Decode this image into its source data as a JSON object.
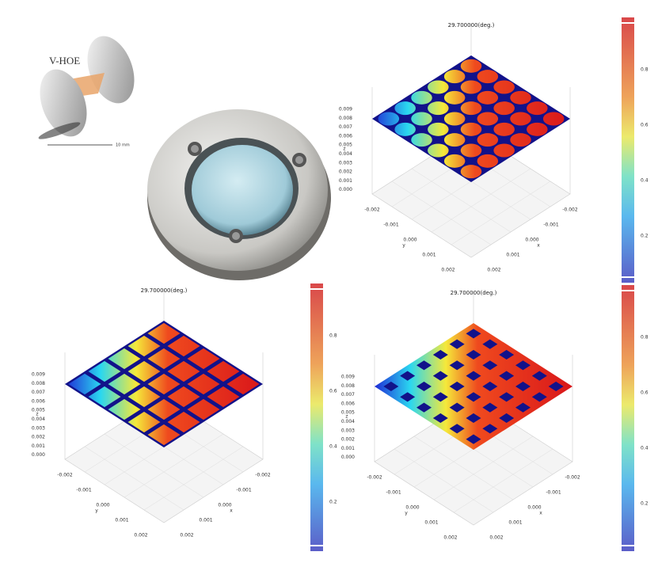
{
  "diagram": {
    "label": "V-HOE",
    "scale": "10 mm"
  },
  "plots": [
    {
      "title": "29.700000(deg.)",
      "z_ticks": [
        "0.009",
        "0.008",
        "0.007",
        "0.006",
        "0.005",
        "0.004",
        "0.003",
        "0.002",
        "0.001",
        "0.000"
      ],
      "z_label": "z",
      "y_label": "y",
      "x_label": "x",
      "y_ticks": [
        "-0.002",
        "-0.001",
        "0.000",
        "0.001",
        "0.002"
      ],
      "x_ticks": [
        "-0.002",
        "-0.001",
        "0.000",
        "0.001",
        "0.002"
      ]
    },
    {
      "title": "29.700000(deg.)",
      "z_ticks": [
        "0.009",
        "0.008",
        "0.007",
        "0.006",
        "0.005",
        "0.004",
        "0.003",
        "0.002",
        "0.001",
        "0.000"
      ],
      "z_label": "z",
      "y_label": "y",
      "x_label": "x",
      "y_ticks": [
        "-0.002",
        "-0.001",
        "0.000",
        "0.001",
        "0.002"
      ],
      "x_ticks": [
        "-0.002",
        "-0.001",
        "0.000",
        "0.001",
        "0.002"
      ]
    },
    {
      "title": "29.700000(deg.)",
      "z_ticks": [
        "0.009",
        "0.008",
        "0.007",
        "0.006",
        "0.005",
        "0.004",
        "0.003",
        "0.002",
        "0.001",
        "0.000"
      ],
      "z_label": "z",
      "y_label": "y",
      "x_label": "x",
      "y_ticks": [
        "-0.002",
        "-0.001",
        "0.000",
        "0.001",
        "0.002"
      ],
      "x_ticks": [
        "-0.002",
        "-0.001",
        "0.000",
        "0.001",
        "0.002"
      ]
    }
  ],
  "colorbars": [
    {
      "ticks": [
        "0.8",
        "0.6",
        "0.4",
        "0.2"
      ]
    },
    {
      "ticks": [
        "0.8",
        "0.6",
        "0.4",
        "0.2"
      ]
    },
    {
      "ticks": [
        "0.8",
        "0.6",
        "0.4",
        "0.2"
      ]
    }
  ]
}
